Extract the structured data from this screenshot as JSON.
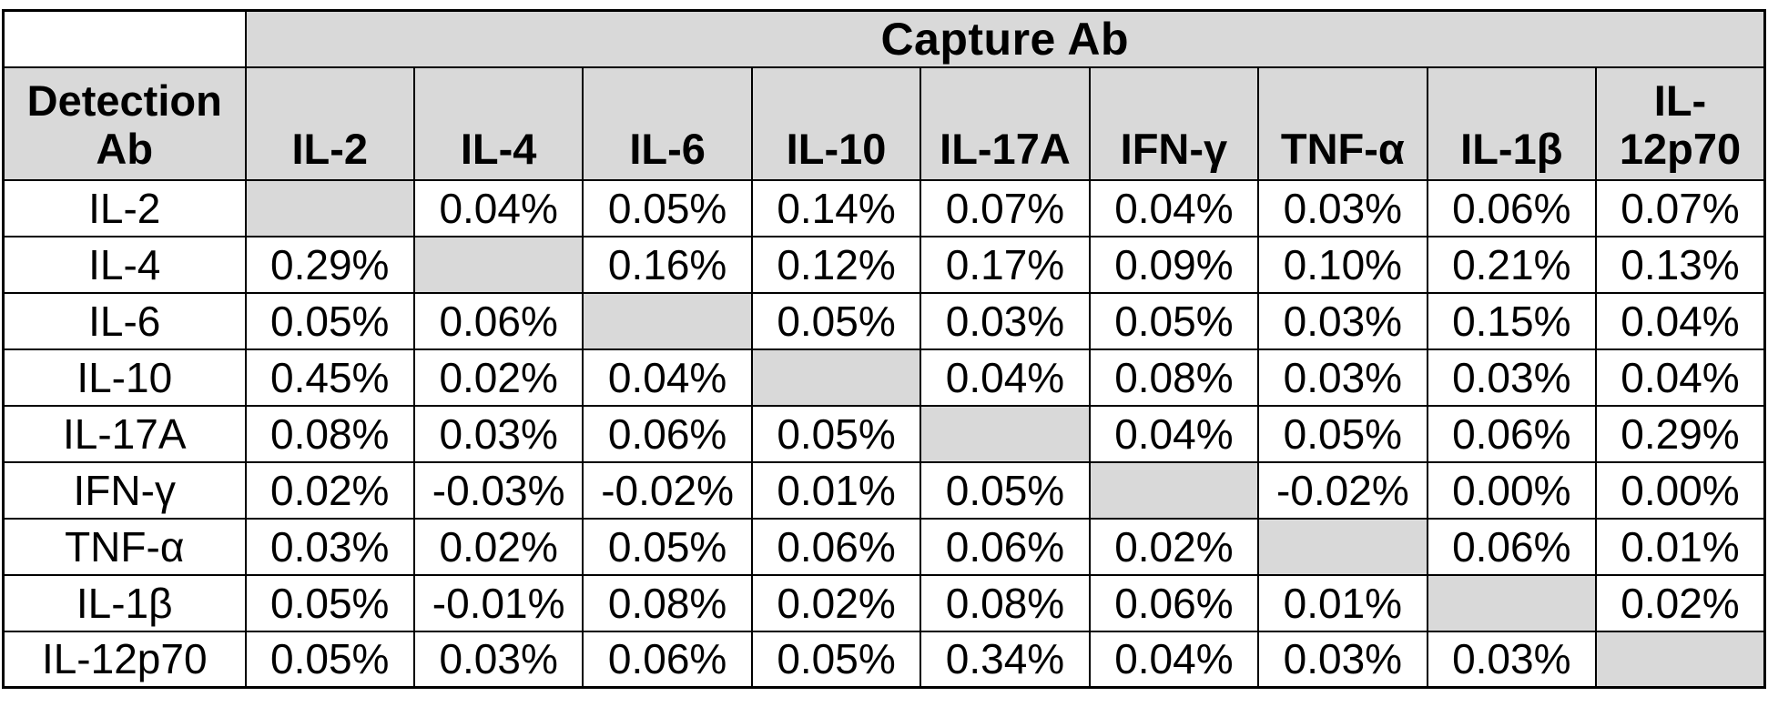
{
  "header": {
    "capture_group_label": "Capture Ab",
    "detection_group_label": "Detection Ab"
  },
  "colors": {
    "header_fill": "#d9d9d9",
    "diagonal_fill": "#d9d9d9",
    "grid_border": "#000000",
    "text": "#000000",
    "page_background": "#ffffff"
  },
  "chart_data": {
    "type": "table",
    "column_group_label": "Capture Ab",
    "row_group_label": "Detection Ab",
    "columns": [
      "IL-2",
      "IL-4",
      "IL-6",
      "IL-10",
      "IL-17A",
      "IFN-γ",
      "TNF-α",
      "IL-1β",
      "IL-12p70"
    ],
    "rows": [
      {
        "label": "IL-2",
        "values": [
          null,
          "0.04%",
          "0.05%",
          "0.14%",
          "0.07%",
          "0.04%",
          "0.03%",
          "0.06%",
          "0.07%"
        ]
      },
      {
        "label": "IL-4",
        "values": [
          "0.29%",
          null,
          "0.16%",
          "0.12%",
          "0.17%",
          "0.09%",
          "0.10%",
          "0.21%",
          "0.13%"
        ]
      },
      {
        "label": "IL-6",
        "values": [
          "0.05%",
          "0.06%",
          null,
          "0.05%",
          "0.03%",
          "0.05%",
          "0.03%",
          "0.15%",
          "0.04%"
        ]
      },
      {
        "label": "IL-10",
        "values": [
          "0.45%",
          "0.02%",
          "0.04%",
          null,
          "0.04%",
          "0.08%",
          "0.03%",
          "0.03%",
          "0.04%"
        ]
      },
      {
        "label": "IL-17A",
        "values": [
          "0.08%",
          "0.03%",
          "0.06%",
          "0.05%",
          null,
          "0.04%",
          "0.05%",
          "0.06%",
          "0.29%"
        ]
      },
      {
        "label": "IFN-γ",
        "values": [
          "0.02%",
          "-0.03%",
          "-0.02%",
          "0.01%",
          "0.05%",
          null,
          "-0.02%",
          "0.00%",
          "0.00%"
        ]
      },
      {
        "label": "TNF-α",
        "values": [
          "0.03%",
          "0.02%",
          "0.05%",
          "0.06%",
          "0.06%",
          "0.02%",
          null,
          "0.06%",
          "0.01%"
        ]
      },
      {
        "label": "IL-1β",
        "values": [
          "0.05%",
          "-0.01%",
          "0.08%",
          "0.02%",
          "0.08%",
          "0.06%",
          "0.01%",
          null,
          "0.02%"
        ]
      },
      {
        "label": "IL-12p70",
        "values": [
          "0.05%",
          "0.03%",
          "0.06%",
          "0.05%",
          "0.34%",
          "0.04%",
          "0.03%",
          "0.03%",
          null
        ]
      }
    ],
    "layout_hints": {
      "diagonal_cells": "shaded, empty",
      "grid": "on"
    }
  }
}
